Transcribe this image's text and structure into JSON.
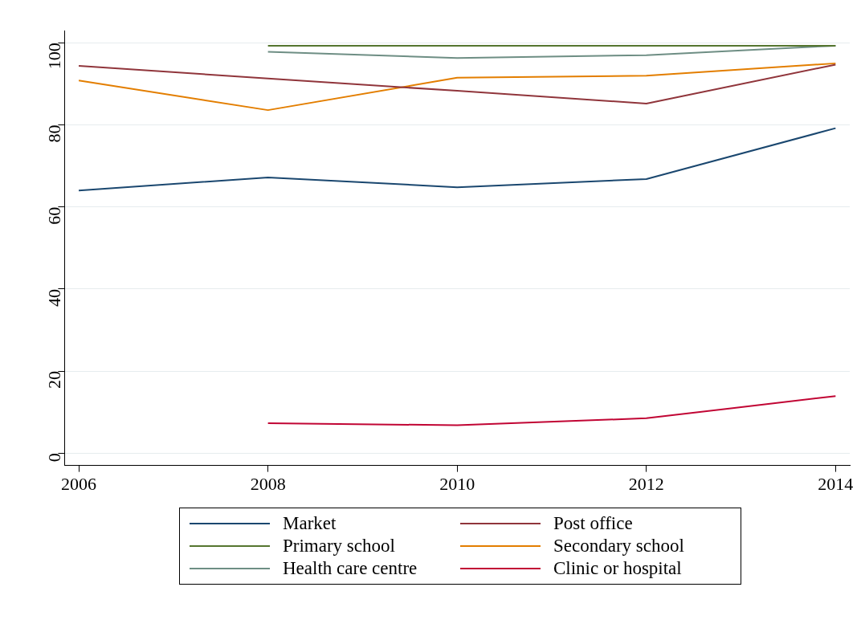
{
  "chart_data": {
    "type": "line",
    "x": [
      2006,
      2008,
      2010,
      2012,
      2014
    ],
    "xlim": [
      2005.85,
      2014.15
    ],
    "xticks": [
      2006,
      2008,
      2010,
      2012,
      2014
    ],
    "ylim": [
      -3,
      103
    ],
    "yticks": [
      0,
      20,
      40,
      60,
      80,
      100
    ],
    "grid": "y",
    "legend": "bottom",
    "marker": "none",
    "line_style": "solid",
    "series": [
      {
        "name": "Market",
        "color": "#1a476f",
        "values": [
          64,
          67.2,
          64.8,
          66.8,
          79.2
        ]
      },
      {
        "name": "Post office",
        "color": "#90353b",
        "values": [
          94.4,
          91.3,
          88.3,
          85.2,
          94.7
        ]
      },
      {
        "name": "Primary school",
        "color": "#55752f",
        "values": [
          null,
          99.3,
          99.3,
          99.3,
          99.3
        ]
      },
      {
        "name": "Secondary school",
        "color": "#e37e00",
        "values": [
          90.8,
          83.6,
          91.5,
          92,
          95
        ]
      },
      {
        "name": "Health care centre",
        "color": "#6e8e84",
        "values": [
          null,
          97.8,
          96.3,
          97,
          99.3
        ]
      },
      {
        "name": "Clinic or hospital",
        "color": "#c10534",
        "values": [
          null,
          7.3,
          6.8,
          8.5,
          13.9
        ]
      }
    ]
  }
}
